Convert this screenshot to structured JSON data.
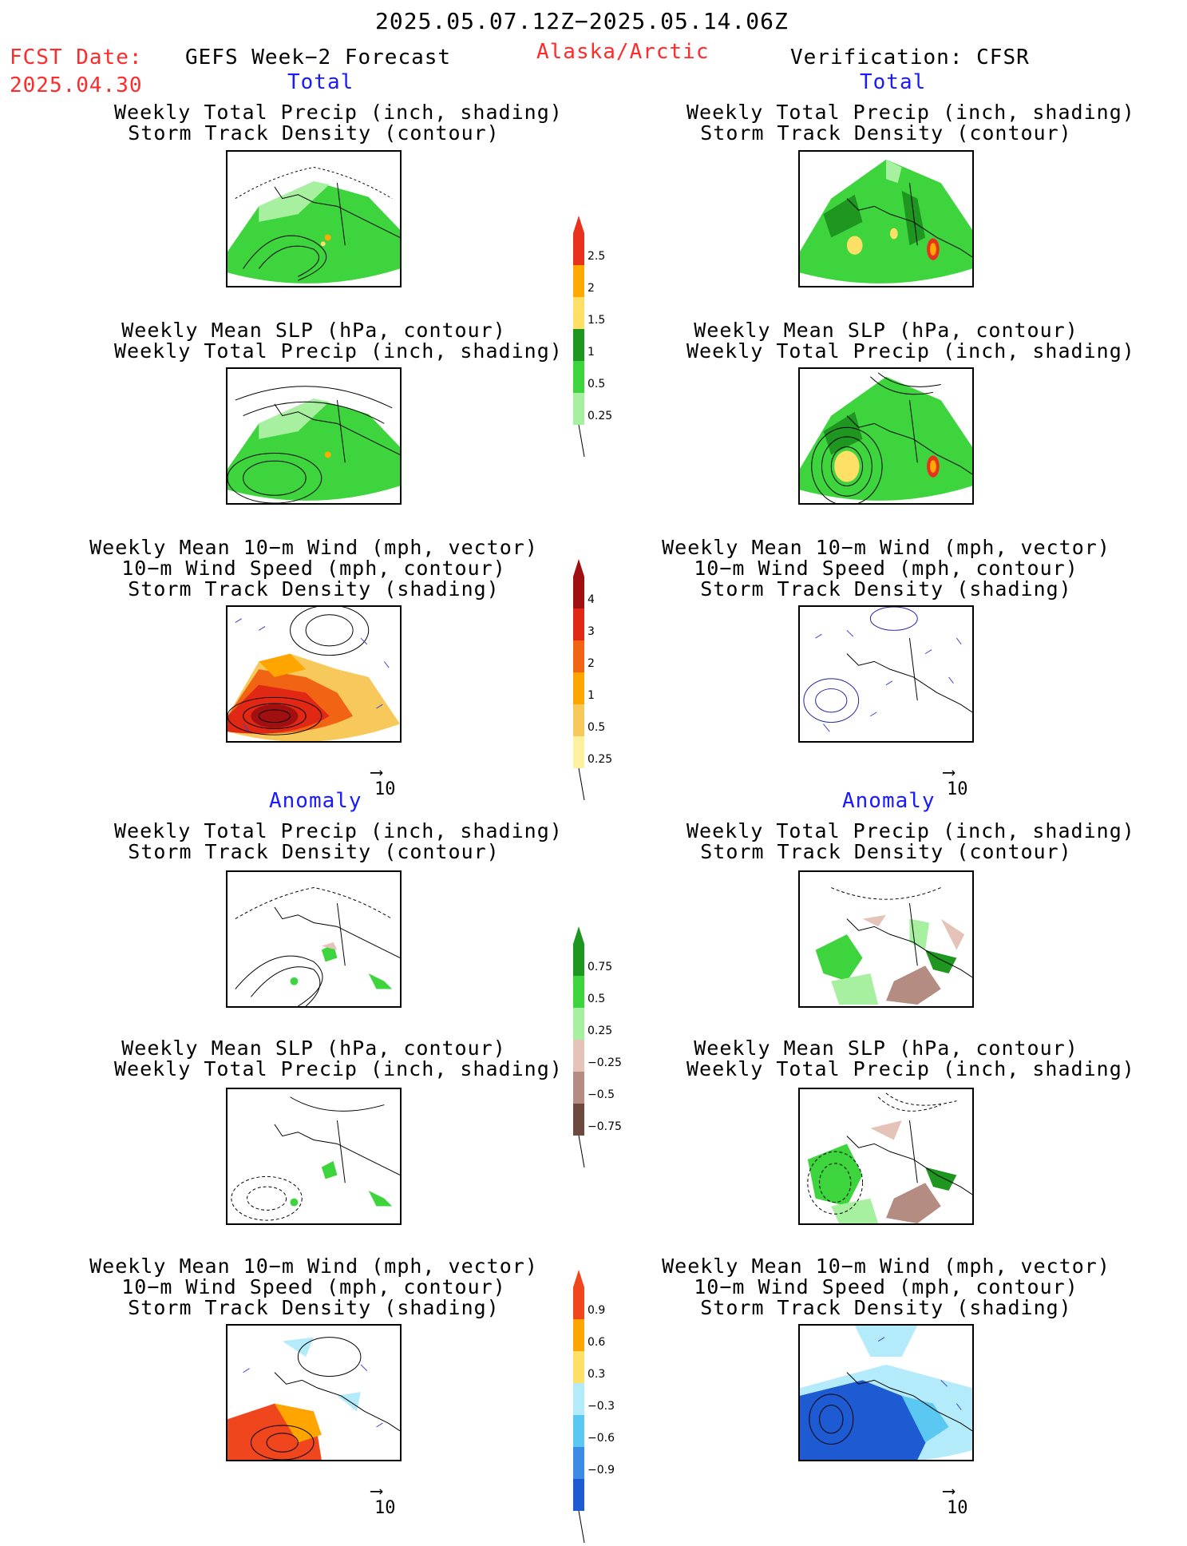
{
  "header": {
    "date_range": "2025.05.07.12Z−2025.05.14.06Z",
    "fcst_label": "FCST Date:",
    "fcst_date": "2025.04.30",
    "left_title": "GEFS Week−2 Forecast",
    "region": "Alaska/Arctic",
    "right_title": "Verification: CFSR"
  },
  "sections": {
    "total": "Total",
    "anomaly": "Anomaly"
  },
  "panel_titles": {
    "precip_track": [
      "Weekly Total Precip (inch, shading)",
      "Storm Track Density (contour)"
    ],
    "slp_precip": [
      "Weekly Mean SLP (hPa, contour)",
      "Weekly Total Precip (inch, shading)"
    ],
    "wind_track": [
      "Weekly Mean 10−m Wind (mph, vector)",
      "10−m Wind Speed (mph, contour)",
      "Storm Track Density (shading)"
    ]
  },
  "vector_ref": "10",
  "colorbars": {
    "precip_total": {
      "labels": [
        "2.5",
        "2",
        "1.5",
        "1",
        "0.5",
        "0.25"
      ],
      "colors": [
        "#e8321e",
        "#ffa800",
        "#ffe066",
        "#1e9620",
        "#3ed43e",
        "#a6f0a0"
      ]
    },
    "track_total": {
      "labels": [
        "4",
        "3",
        "2",
        "1",
        "0.5",
        "0.25"
      ],
      "colors": [
        "#a01010",
        "#e02814",
        "#f06414",
        "#ffa500",
        "#f7c85a",
        "#fff0a0"
      ]
    },
    "precip_anom": {
      "labels": [
        "0.75",
        "0.5",
        "0.25",
        "−0.25",
        "−0.5",
        "−0.75"
      ],
      "colors": [
        "#1e9620",
        "#3ed43e",
        "#a6f0a0",
        "#e6c3b8",
        "#b48c82",
        "#6e4a3e"
      ]
    },
    "track_anom": {
      "labels": [
        "0.9",
        "0.6",
        "0.3",
        "−0.3",
        "−0.6",
        "−0.9"
      ],
      "colors": [
        "#f0461e",
        "#ffa500",
        "#ffe066",
        "#b4ebfa",
        "#5ac8f0",
        "#3c8ce6",
        "#1e5ad2"
      ]
    }
  }
}
